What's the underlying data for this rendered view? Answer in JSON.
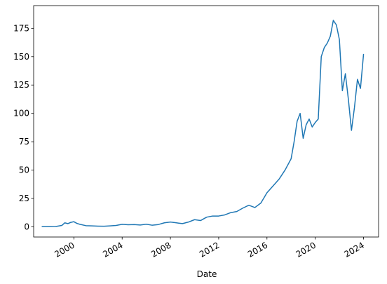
{
  "chart_data": {
    "type": "line",
    "title": "",
    "xlabel": "Date",
    "ylabel": "",
    "x_axis_kind": "date",
    "xlim": [
      "1996-09-01",
      "2025-04-01"
    ],
    "ylim": [
      -9,
      195
    ],
    "x_ticks": [
      {
        "date": "2000-01-01",
        "label": "2000"
      },
      {
        "date": "2004-01-01",
        "label": "2004"
      },
      {
        "date": "2008-01-01",
        "label": "2008"
      },
      {
        "date": "2012-01-01",
        "label": "2012"
      },
      {
        "date": "2016-01-01",
        "label": "2016"
      },
      {
        "date": "2020-01-01",
        "label": "2020"
      },
      {
        "date": "2024-01-01",
        "label": "2024"
      }
    ],
    "y_ticks": [
      0,
      25,
      50,
      75,
      100,
      125,
      150,
      175
    ],
    "y_tick_labels": [
      "0",
      "25",
      "50",
      "75",
      "100",
      "125",
      "150",
      "175"
    ],
    "grid": false,
    "series": [
      {
        "color": "#1f77b4",
        "x": [
          "1997-05-15",
          "1998-01-01",
          "1998-07-01",
          "1999-01-01",
          "1999-04-01",
          "1999-07-01",
          "1999-10-01",
          "2000-01-01",
          "2000-04-01",
          "2000-07-01",
          "2001-01-01",
          "2001-07-01",
          "2002-01-01",
          "2002-07-01",
          "2003-01-01",
          "2003-07-01",
          "2004-01-01",
          "2004-07-01",
          "2005-01-01",
          "2005-07-01",
          "2006-01-01",
          "2006-07-01",
          "2007-01-01",
          "2007-07-01",
          "2008-01-01",
          "2008-07-01",
          "2009-01-01",
          "2009-07-01",
          "2010-01-01",
          "2010-07-01",
          "2011-01-01",
          "2011-07-01",
          "2012-01-01",
          "2012-07-01",
          "2013-01-01",
          "2013-07-01",
          "2014-01-01",
          "2014-07-01",
          "2015-01-01",
          "2015-07-01",
          "2016-01-01",
          "2016-07-01",
          "2017-01-01",
          "2017-07-01",
          "2018-01-01",
          "2018-04-01",
          "2018-07-01",
          "2018-10-01",
          "2019-01-01",
          "2019-04-01",
          "2019-07-01",
          "2019-10-01",
          "2020-01-01",
          "2020-04-01",
          "2020-07-01",
          "2020-10-01",
          "2021-01-01",
          "2021-04-01",
          "2021-07-01",
          "2021-10-01",
          "2022-01-01",
          "2022-04-01",
          "2022-07-01",
          "2022-10-01",
          "2023-01-01",
          "2023-04-01",
          "2023-07-01",
          "2023-10-01",
          "2024-01-01"
        ],
        "y": [
          0.1,
          0.2,
          0.3,
          1.2,
          3.5,
          2.8,
          3.9,
          4.5,
          3.0,
          2.2,
          1.0,
          0.8,
          0.6,
          0.5,
          0.8,
          1.2,
          2.2,
          1.8,
          2.0,
          1.6,
          2.3,
          1.4,
          2.0,
          3.5,
          4.2,
          3.5,
          2.8,
          4.2,
          6.3,
          5.5,
          8.5,
          9.5,
          9.5,
          10.5,
          12.5,
          13.5,
          16.5,
          19.0,
          17.0,
          21.0,
          30.0,
          36.0,
          42.0,
          50.0,
          60.0,
          75.0,
          93.0,
          100.0,
          78.0,
          90.0,
          95.0,
          88.0,
          92.0,
          95.0,
          150.0,
          158.0,
          162.0,
          168.0,
          182.0,
          178.0,
          165.0,
          120.0,
          135.0,
          112.0,
          85.0,
          105.0,
          130.0,
          122.0,
          152.0
        ]
      }
    ]
  }
}
